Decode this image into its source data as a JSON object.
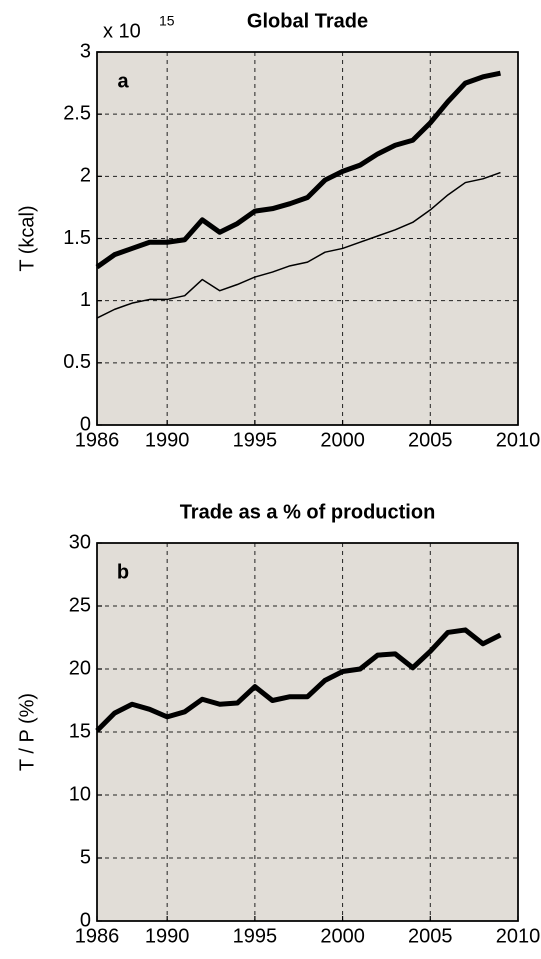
{
  "charts": [
    {
      "type": "line",
      "title": "Global Trade",
      "panel_label": "a",
      "ylabel": "T (kcal)",
      "y_multiplier": {
        "base": "x 10",
        "exponent": "15"
      },
      "x": [
        1986,
        1987,
        1988,
        1989,
        1990,
        1991,
        1992,
        1993,
        1994,
        1995,
        1996,
        1997,
        1998,
        1999,
        2000,
        2001,
        2002,
        2003,
        2004,
        2005,
        2006,
        2007,
        2008,
        2009
      ],
      "series": [
        {
          "color": "#000000",
          "values": [
            1.27,
            1.37,
            1.42,
            1.47,
            1.47,
            1.49,
            1.65,
            1.55,
            1.62,
            1.72,
            1.74,
            1.78,
            1.83,
            1.97,
            2.04,
            2.09,
            2.18,
            2.25,
            2.29,
            2.43,
            2.6,
            2.75,
            2.8,
            2.83
          ]
        },
        {
          "color": "#000000",
          "values": [
            0.86,
            0.93,
            0.98,
            1.01,
            1.01,
            1.04,
            1.17,
            1.08,
            1.13,
            1.19,
            1.23,
            1.28,
            1.31,
            1.39,
            1.42,
            1.47,
            1.52,
            1.57,
            1.63,
            1.73,
            1.85,
            1.95,
            1.98,
            2.03
          ]
        }
      ],
      "xlim": [
        1986,
        2010
      ],
      "xticks": [
        1986,
        1990,
        1995,
        2000,
        2005,
        2010
      ],
      "ylim": [
        0,
        3
      ],
      "yticks": [
        0,
        0.5,
        1,
        1.5,
        2,
        2.5,
        3
      ],
      "grid": true
    },
    {
      "type": "line",
      "title": "Trade as a % of production",
      "panel_label": "b",
      "ylabel": "T / P (%)",
      "x": [
        1986,
        1987,
        1988,
        1989,
        1990,
        1991,
        1992,
        1993,
        1994,
        1995,
        1996,
        1997,
        1998,
        1999,
        2000,
        2001,
        2002,
        2003,
        2004,
        2005,
        2006,
        2007,
        2008,
        2009
      ],
      "series": [
        {
          "color": "#000000",
          "values": [
            15.1,
            16.5,
            17.2,
            16.8,
            16.2,
            16.6,
            17.6,
            17.2,
            17.3,
            18.6,
            17.5,
            17.8,
            17.8,
            19.1,
            19.8,
            20.0,
            21.1,
            21.2,
            20.1,
            21.4,
            22.9,
            23.1,
            22.0,
            22.7
          ]
        }
      ],
      "xlim": [
        1986,
        2010
      ],
      "xticks": [
        1986,
        1990,
        1995,
        2000,
        2005,
        2010
      ],
      "ylim": [
        0,
        30
      ],
      "yticks": [
        0,
        5,
        10,
        15,
        20,
        25,
        30
      ],
      "grid": true
    }
  ]
}
